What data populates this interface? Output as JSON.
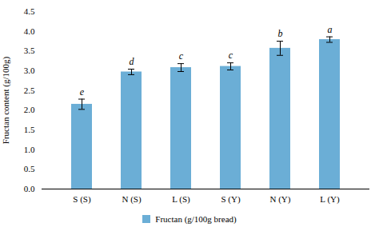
{
  "chart_data": {
    "type": "bar",
    "categories": [
      "S (S)",
      "N (S)",
      "L (S)",
      "S (Y)",
      "N (Y)",
      "L (Y)"
    ],
    "series": [
      {
        "name": "Fructan (g/100g bread)",
        "color": "#6baed6",
        "values": [
          2.15,
          2.97,
          3.08,
          3.11,
          3.57,
          3.79
        ],
        "errors": [
          0.13,
          0.07,
          0.1,
          0.09,
          0.18,
          0.07
        ],
        "letters": [
          "e",
          "d",
          "c",
          "c",
          "b",
          "a"
        ]
      }
    ],
    "ylabel": "Fructan content (g/100g)",
    "ylim": [
      0,
      4.5
    ],
    "yticks": [
      {
        "value": 0,
        "label": "0.0"
      },
      0.5,
      {
        "value": 1,
        "label": "1.0"
      },
      1.5,
      {
        "value": 2,
        "label": "2.0"
      },
      2.5,
      {
        "value": 3,
        "label": "3.0"
      },
      3.5,
      {
        "value": 4,
        "label": "4.0"
      },
      4.5
    ],
    "legend": "bottom",
    "grid": false
  }
}
